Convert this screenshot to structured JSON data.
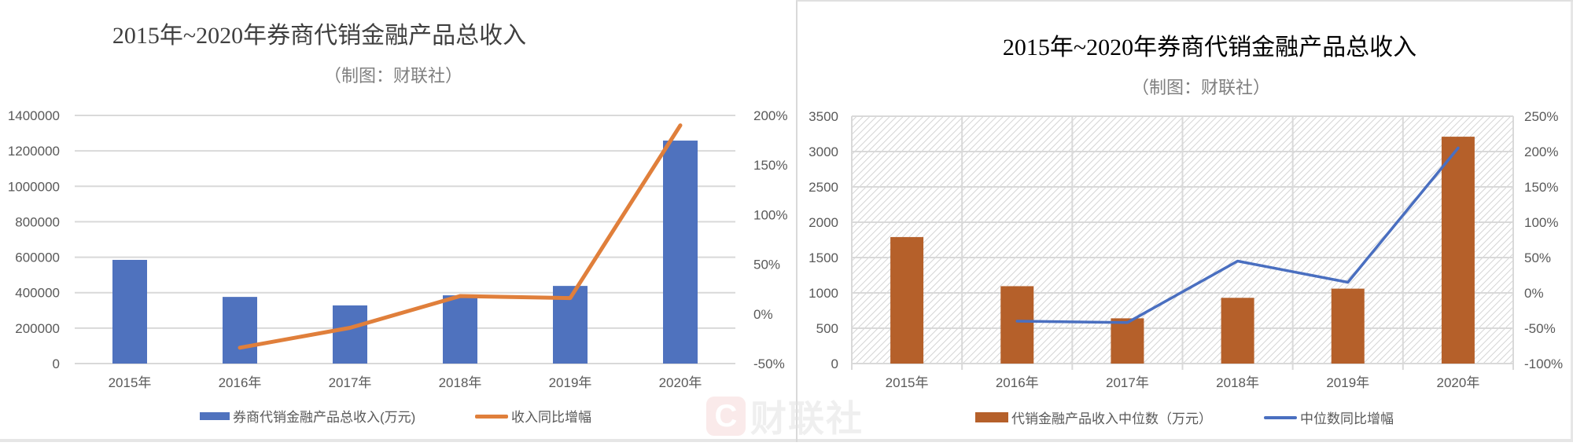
{
  "left_panel": {
    "title": "2015年~2020年券商代销金融产品总收入",
    "subtitle": "（制图：财联社）",
    "legend": {
      "bar_label": "券商代销金融产品总收入(万元)",
      "line_label": "收入同比增幅"
    }
  },
  "right_panel": {
    "title": "2015年~2020年券商代销金融产品总收入",
    "subtitle": "（制图：财联社）",
    "legend": {
      "bar_label": "代销金融产品收入中位数（万元）",
      "line_label": "中位数同比增幅"
    }
  },
  "watermark": {
    "logo_glyph": "C",
    "text": "财联社"
  },
  "colors": {
    "left_bar": "#4f72be",
    "left_line": "#e07f3b",
    "right_bar": "#b5602a",
    "right_line": "#4a6fc0",
    "gridline": "#d9d9d9",
    "axis_text": "#595959"
  },
  "chart_data": [
    {
      "type": "bar",
      "combo": "bar+line (dual axis)",
      "title": "2015年~2020年券商代销金融产品总收入",
      "subtitle": "（制图：财联社）",
      "categories": [
        "2015年",
        "2016年",
        "2017年",
        "2018年",
        "2019年",
        "2020年"
      ],
      "series": [
        {
          "name": "券商代销金融产品总收入(万元)",
          "type": "bar",
          "axis": "left",
          "values": [
            585000,
            376000,
            328000,
            385000,
            438000,
            1258000
          ]
        },
        {
          "name": "收入同比增幅",
          "type": "line",
          "axis": "right",
          "values": [
            null,
            -0.34,
            -0.14,
            0.18,
            0.16,
            1.9
          ]
        }
      ],
      "y_left": {
        "ticks": [
          "0",
          "200000",
          "400000",
          "600000",
          "800000",
          "1000000",
          "1200000",
          "1400000"
        ],
        "range": [
          0,
          1400000
        ]
      },
      "y_right": {
        "ticks": [
          "-50%",
          "0%",
          "50%",
          "100%",
          "150%",
          "200%"
        ],
        "range": [
          -0.5,
          2.0
        ]
      },
      "grid": true,
      "legend_position": "bottom"
    },
    {
      "type": "bar",
      "combo": "bar+line (dual axis)",
      "title": "2015年~2020年券商代销金融产品总收入",
      "subtitle": "（制图：财联社）",
      "categories": [
        "2015年",
        "2016年",
        "2017年",
        "2018年",
        "2019年",
        "2020年"
      ],
      "series": [
        {
          "name": "代销金融产品收入中位数（万元）",
          "type": "bar",
          "axis": "left",
          "values": [
            1790,
            1095,
            640,
            930,
            1060,
            3210
          ]
        },
        {
          "name": "中位数同比增幅",
          "type": "line",
          "axis": "right",
          "values": [
            null,
            -0.4,
            -0.42,
            0.45,
            0.15,
            2.05
          ]
        }
      ],
      "y_left": {
        "ticks": [
          "0",
          "500",
          "1000",
          "1500",
          "2000",
          "2500",
          "3000",
          "3500"
        ],
        "range": [
          0,
          3500
        ]
      },
      "y_right": {
        "ticks": [
          "-100%",
          "-50%",
          "0%",
          "50%",
          "100%",
          "150%",
          "200%",
          "250%"
        ],
        "range": [
          -1.0,
          2.5
        ]
      },
      "grid": true,
      "plot_background": "diagonal hatch",
      "legend_position": "bottom"
    }
  ]
}
